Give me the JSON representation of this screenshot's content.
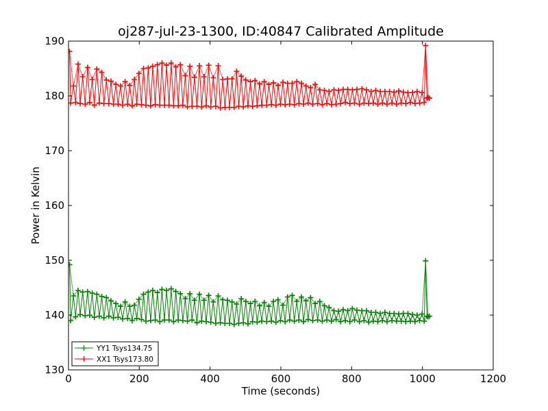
{
  "chart_data": {
    "type": "line",
    "title": "oj287-jul-23-1300, ID:40847 Calibrated Amplitude",
    "xlabel": "Time (seconds)",
    "ylabel": "Power in Kelvin",
    "xlim": [
      0,
      1200
    ],
    "ylim": [
      130,
      190
    ],
    "xticks": [
      0,
      200,
      400,
      600,
      800,
      1000,
      1200
    ],
    "yticks": [
      130,
      140,
      150,
      160,
      170,
      180,
      190
    ],
    "grid": false,
    "legend_position": "lower-left",
    "marker": "+",
    "series": [
      {
        "name": "YY1 Tsys134.75",
        "color": "#008000",
        "peaks": [
          [
            3,
            149.2
          ],
          [
            14,
            143.5
          ],
          [
            27,
            144.5
          ],
          [
            40,
            144.2
          ],
          [
            54,
            144.3
          ],
          [
            67,
            144.0
          ],
          [
            80,
            143.8
          ],
          [
            94,
            143.4
          ],
          [
            107,
            143.2
          ],
          [
            120,
            142.6
          ],
          [
            134,
            142.1
          ],
          [
            147,
            141.6
          ],
          [
            160,
            142.4
          ],
          [
            173,
            141.6
          ],
          [
            186,
            141.8
          ],
          [
            199,
            142.9
          ],
          [
            212,
            143.8
          ],
          [
            225,
            144.2
          ],
          [
            238,
            144.5
          ],
          [
            251,
            144.1
          ],
          [
            264,
            144.7
          ],
          [
            277,
            144.5
          ],
          [
            290,
            144.8
          ],
          [
            303,
            144.3
          ],
          [
            316,
            143.9
          ],
          [
            330,
            143.0
          ],
          [
            343,
            143.9
          ],
          [
            356,
            142.7
          ],
          [
            370,
            143.8
          ],
          [
            383,
            142.7
          ],
          [
            396,
            143.6
          ],
          [
            409,
            142.4
          ],
          [
            423,
            143.5
          ],
          [
            436,
            142.8
          ],
          [
            449,
            142.7
          ],
          [
            462,
            142.4
          ],
          [
            475,
            142.0
          ],
          [
            488,
            143.0
          ],
          [
            501,
            142.5
          ],
          [
            514,
            142.1
          ],
          [
            527,
            142.5
          ],
          [
            540,
            141.7
          ],
          [
            553,
            142.3
          ],
          [
            566,
            141.6
          ],
          [
            579,
            142.5
          ],
          [
            592,
            142.8
          ],
          [
            606,
            141.8
          ],
          [
            619,
            143.3
          ],
          [
            632,
            143.6
          ],
          [
            645,
            142.5
          ],
          [
            658,
            143.3
          ],
          [
            671,
            142.6
          ],
          [
            684,
            143.2
          ],
          [
            697,
            142.1
          ],
          [
            710,
            142.5
          ],
          [
            723,
            141.7
          ],
          [
            736,
            141.4
          ],
          [
            750,
            140.8
          ],
          [
            763,
            140.7
          ],
          [
            776,
            141.0
          ],
          [
            789,
            140.8
          ],
          [
            802,
            141.2
          ],
          [
            815,
            140.9
          ],
          [
            829,
            140.8
          ],
          [
            842,
            140.8
          ],
          [
            855,
            140.5
          ],
          [
            868,
            140.5
          ],
          [
            881,
            140.3
          ],
          [
            894,
            140.5
          ],
          [
            907,
            140.3
          ],
          [
            920,
            140.3
          ],
          [
            933,
            140.2
          ],
          [
            946,
            140.3
          ],
          [
            959,
            140.3
          ],
          [
            972,
            140.1
          ],
          [
            985,
            140.0
          ],
          [
            999,
            140.2
          ],
          [
            1009,
            149.9
          ],
          [
            1016,
            139.7
          ]
        ],
        "troughs": [
          [
            6,
            139.0
          ],
          [
            20,
            139.7
          ],
          [
            33,
            140.1
          ],
          [
            47,
            139.9
          ],
          [
            60,
            140.0
          ],
          [
            73,
            139.6
          ],
          [
            87,
            139.8
          ],
          [
            100,
            139.5
          ],
          [
            114,
            139.8
          ],
          [
            127,
            139.5
          ],
          [
            140,
            139.6
          ],
          [
            153,
            139.3
          ],
          [
            167,
            139.4
          ],
          [
            180,
            139.0
          ],
          [
            193,
            139.4
          ],
          [
            206,
            139.2
          ],
          [
            219,
            138.9
          ],
          [
            232,
            139.0
          ],
          [
            245,
            139.1
          ],
          [
            258,
            138.8
          ],
          [
            271,
            139.1
          ],
          [
            284,
            139.1
          ],
          [
            297,
            138.8
          ],
          [
            310,
            139.1
          ],
          [
            323,
            139.0
          ],
          [
            336,
            138.9
          ],
          [
            349,
            139.1
          ],
          [
            363,
            138.6
          ],
          [
            376,
            138.9
          ],
          [
            389,
            138.8
          ],
          [
            402,
            138.7
          ],
          [
            416,
            138.5
          ],
          [
            429,
            138.6
          ],
          [
            442,
            138.5
          ],
          [
            455,
            138.5
          ],
          [
            468,
            138.3
          ],
          [
            481,
            138.5
          ],
          [
            494,
            138.6
          ],
          [
            507,
            138.4
          ],
          [
            520,
            138.8
          ],
          [
            533,
            138.7
          ],
          [
            546,
            138.9
          ],
          [
            560,
            138.8
          ],
          [
            573,
            138.9
          ],
          [
            586,
            138.7
          ],
          [
            599,
            139.0
          ],
          [
            612,
            138.8
          ],
          [
            625,
            139.1
          ],
          [
            638,
            138.9
          ],
          [
            651,
            139.1
          ],
          [
            664,
            138.8
          ],
          [
            677,
            139.2
          ],
          [
            690,
            139.0
          ],
          [
            704,
            139.1
          ],
          [
            717,
            138.9
          ],
          [
            730,
            139.1
          ],
          [
            743,
            138.9
          ],
          [
            756,
            139.2
          ],
          [
            769,
            138.8
          ],
          [
            782,
            139.0
          ],
          [
            795,
            138.8
          ],
          [
            808,
            139.1
          ],
          [
            822,
            138.8
          ],
          [
            835,
            139.0
          ],
          [
            848,
            138.7
          ],
          [
            861,
            138.9
          ],
          [
            874,
            138.8
          ],
          [
            887,
            139.0
          ],
          [
            900,
            138.8
          ],
          [
            914,
            139.0
          ],
          [
            927,
            138.9
          ],
          [
            940,
            138.9
          ],
          [
            953,
            138.8
          ],
          [
            966,
            138.9
          ],
          [
            979,
            138.8
          ],
          [
            992,
            139.0
          ],
          [
            1005,
            138.9
          ],
          [
            1013,
            139.8
          ],
          [
            1020,
            139.8
          ]
        ]
      },
      {
        "name": "XX1 Tsys173.80",
        "color": "#ff0000",
        "peaks": [
          [
            3,
            188.1
          ],
          [
            14,
            181.8
          ],
          [
            27,
            185.8
          ],
          [
            40,
            183.5
          ],
          [
            54,
            185.2
          ],
          [
            67,
            183.0
          ],
          [
            80,
            184.9
          ],
          [
            94,
            184.3
          ],
          [
            107,
            182.9
          ],
          [
            120,
            182.7
          ],
          [
            134,
            182.1
          ],
          [
            147,
            181.8
          ],
          [
            160,
            182.6
          ],
          [
            173,
            181.9
          ],
          [
            186,
            183.0
          ],
          [
            199,
            184.1
          ],
          [
            212,
            185.0
          ],
          [
            225,
            185.1
          ],
          [
            238,
            185.4
          ],
          [
            251,
            185.7
          ],
          [
            264,
            186.0
          ],
          [
            277,
            185.6
          ],
          [
            290,
            186.0
          ],
          [
            303,
            185.3
          ],
          [
            316,
            185.7
          ],
          [
            330,
            183.7
          ],
          [
            343,
            185.4
          ],
          [
            356,
            183.4
          ],
          [
            370,
            185.5
          ],
          [
            383,
            183.5
          ],
          [
            396,
            185.6
          ],
          [
            409,
            183.3
          ],
          [
            423,
            185.5
          ],
          [
            436,
            183.0
          ],
          [
            449,
            183.1
          ],
          [
            462,
            183.1
          ],
          [
            475,
            184.5
          ],
          [
            488,
            183.6
          ],
          [
            501,
            182.9
          ],
          [
            514,
            182.6
          ],
          [
            527,
            182.8
          ],
          [
            540,
            182.2
          ],
          [
            553,
            182.6
          ],
          [
            566,
            182.1
          ],
          [
            579,
            182.4
          ],
          [
            592,
            181.9
          ],
          [
            606,
            182.5
          ],
          [
            619,
            182.3
          ],
          [
            632,
            182.3
          ],
          [
            645,
            182.6
          ],
          [
            658,
            182.3
          ],
          [
            671,
            181.8
          ],
          [
            684,
            181.5
          ],
          [
            697,
            182.1
          ],
          [
            710,
            181.1
          ],
          [
            723,
            181.0
          ],
          [
            736,
            180.8
          ],
          [
            750,
            181.1
          ],
          [
            763,
            181.0
          ],
          [
            776,
            181.2
          ],
          [
            789,
            181.2
          ],
          [
            802,
            181.1
          ],
          [
            815,
            181.2
          ],
          [
            829,
            181.3
          ],
          [
            842,
            181.1
          ],
          [
            855,
            180.8
          ],
          [
            868,
            181.0
          ],
          [
            881,
            180.8
          ],
          [
            894,
            180.8
          ],
          [
            907,
            180.8
          ],
          [
            920,
            180.7
          ],
          [
            933,
            180.9
          ],
          [
            946,
            180.7
          ],
          [
            959,
            180.6
          ],
          [
            972,
            180.6
          ],
          [
            985,
            180.8
          ],
          [
            999,
            180.6
          ],
          [
            1009,
            189.2
          ],
          [
            1016,
            179.7
          ]
        ],
        "troughs": [
          [
            6,
            178.7
          ],
          [
            20,
            178.8
          ],
          [
            33,
            178.6
          ],
          [
            47,
            178.5
          ],
          [
            60,
            178.8
          ],
          [
            73,
            178.3
          ],
          [
            87,
            178.7
          ],
          [
            100,
            178.6
          ],
          [
            114,
            178.6
          ],
          [
            127,
            178.5
          ],
          [
            140,
            178.5
          ],
          [
            153,
            178.3
          ],
          [
            167,
            178.5
          ],
          [
            180,
            178.2
          ],
          [
            193,
            178.5
          ],
          [
            206,
            178.4
          ],
          [
            219,
            178.3
          ],
          [
            232,
            178.2
          ],
          [
            245,
            178.4
          ],
          [
            258,
            178.3
          ],
          [
            271,
            178.3
          ],
          [
            284,
            178.3
          ],
          [
            297,
            178.2
          ],
          [
            310,
            178.2
          ],
          [
            323,
            178.3
          ],
          [
            336,
            178.0
          ],
          [
            349,
            178.1
          ],
          [
            363,
            178.1
          ],
          [
            376,
            178.0
          ],
          [
            389,
            178.2
          ],
          [
            402,
            178.0
          ],
          [
            416,
            178.1
          ],
          [
            429,
            177.8
          ],
          [
            442,
            177.9
          ],
          [
            455,
            177.9
          ],
          [
            468,
            177.9
          ],
          [
            481,
            178.1
          ],
          [
            494,
            178.0
          ],
          [
            507,
            178.2
          ],
          [
            520,
            178.1
          ],
          [
            533,
            178.2
          ],
          [
            546,
            178.3
          ],
          [
            560,
            178.3
          ],
          [
            573,
            178.4
          ],
          [
            586,
            178.3
          ],
          [
            599,
            178.5
          ],
          [
            612,
            178.4
          ],
          [
            625,
            178.5
          ],
          [
            638,
            178.4
          ],
          [
            651,
            178.6
          ],
          [
            664,
            178.5
          ],
          [
            677,
            178.7
          ],
          [
            690,
            178.5
          ],
          [
            704,
            178.6
          ],
          [
            717,
            178.4
          ],
          [
            730,
            178.6
          ],
          [
            743,
            178.4
          ],
          [
            756,
            178.5
          ],
          [
            769,
            178.6
          ],
          [
            782,
            178.8
          ],
          [
            795,
            178.6
          ],
          [
            808,
            178.7
          ],
          [
            822,
            178.5
          ],
          [
            835,
            178.7
          ],
          [
            848,
            178.6
          ],
          [
            861,
            178.7
          ],
          [
            874,
            178.5
          ],
          [
            887,
            178.7
          ],
          [
            900,
            178.5
          ],
          [
            914,
            178.7
          ],
          [
            927,
            178.5
          ],
          [
            940,
            178.7
          ],
          [
            953,
            178.6
          ],
          [
            966,
            178.8
          ],
          [
            979,
            178.6
          ],
          [
            992,
            178.7
          ],
          [
            1005,
            178.8
          ],
          [
            1013,
            179.6
          ],
          [
            1020,
            179.6
          ]
        ]
      }
    ]
  }
}
